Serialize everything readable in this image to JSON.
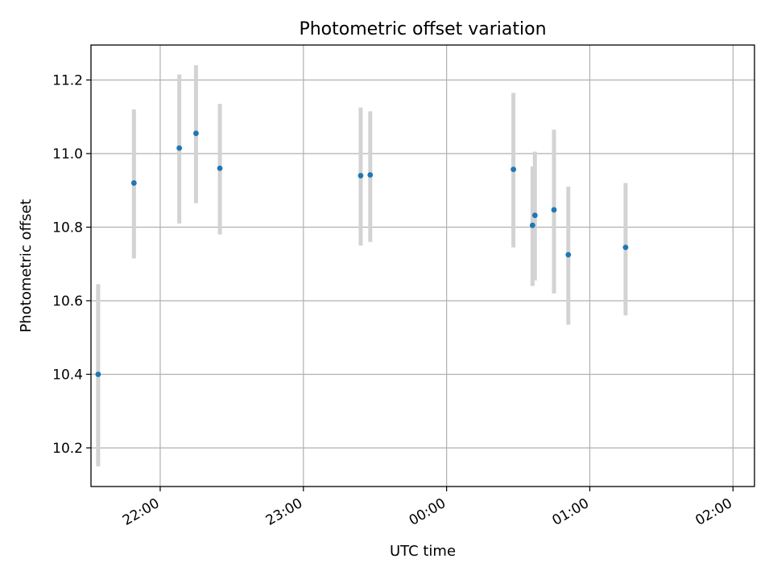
{
  "chart_data": {
    "type": "scatter",
    "title": "Photometric offset variation",
    "xlabel": "UTC time",
    "ylabel": "Photometric offset",
    "x_tick_labels": [
      "22:00",
      "23:00",
      "00:00",
      "01:00",
      "02:00"
    ],
    "y_tick_labels": [
      "10.2",
      "10.4",
      "10.6",
      "10.8",
      "11.0",
      "11.2"
    ],
    "ylim": [
      10.095,
      11.295
    ],
    "xlim": [
      "21:31",
      "02:09"
    ],
    "grid": true,
    "colors": {
      "points": "#1f77b4",
      "error_bars": "#d3d3d3",
      "grid": "#b0b0b0"
    },
    "points": [
      {
        "x": "21:34",
        "y": 10.4,
        "y_low": 10.15,
        "y_high": 10.645
      },
      {
        "x": "21:49",
        "y": 10.92,
        "y_low": 10.715,
        "y_high": 11.12
      },
      {
        "x": "22:08",
        "y": 11.015,
        "y_low": 10.81,
        "y_high": 11.215
      },
      {
        "x": "22:15",
        "y": 11.055,
        "y_low": 10.865,
        "y_high": 11.24
      },
      {
        "x": "22:25",
        "y": 10.96,
        "y_low": 10.78,
        "y_high": 11.135
      },
      {
        "x": "23:24",
        "y": 10.94,
        "y_low": 10.75,
        "y_high": 11.125
      },
      {
        "x": "23:28",
        "y": 10.942,
        "y_low": 10.76,
        "y_high": 11.115
      },
      {
        "x": "00:28",
        "y": 10.957,
        "y_low": 10.745,
        "y_high": 11.165
      },
      {
        "x": "00:36",
        "y": 10.805,
        "y_low": 10.64,
        "y_high": 10.965
      },
      {
        "x": "00:37",
        "y": 10.832,
        "y_low": 10.655,
        "y_high": 11.005
      },
      {
        "x": "00:45",
        "y": 10.847,
        "y_low": 10.62,
        "y_high": 11.065
      },
      {
        "x": "00:51",
        "y": 10.725,
        "y_low": 10.535,
        "y_high": 10.91
      },
      {
        "x": "01:15",
        "y": 10.745,
        "y_low": 10.56,
        "y_high": 10.92
      }
    ]
  }
}
